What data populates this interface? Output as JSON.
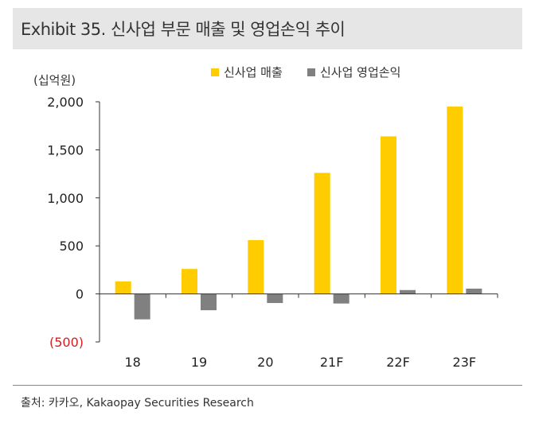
{
  "header": {
    "title": "Exhibit 35. 신사업 부문 매출 및 영업손익 추이"
  },
  "source": "출처: 카카오, Kakaopay Securities Research",
  "colors": {
    "sales": "#ffcc00",
    "op_profit": "#808080",
    "negative_tick": "#d42020",
    "axis": "#333333"
  },
  "chart_data": {
    "type": "bar",
    "title": "",
    "ylabel": "(십억원)",
    "xlabel": "",
    "ylim": [
      -500,
      2000
    ],
    "yticks": [
      -500,
      0,
      500,
      1000,
      1500,
      2000
    ],
    "ytick_labels": [
      "(500)",
      "0",
      "500",
      "1,000",
      "1,500",
      "2,000"
    ],
    "categories": [
      "18",
      "19",
      "20",
      "21F",
      "22F",
      "23F"
    ],
    "legend_position": "top",
    "grid": false,
    "series": [
      {
        "name": "신사업 매출",
        "values": [
          130,
          260,
          560,
          1260,
          1640,
          1950
        ]
      },
      {
        "name": "신사업 영업손익",
        "values": [
          -265,
          -170,
          -95,
          -100,
          40,
          55
        ]
      }
    ]
  }
}
